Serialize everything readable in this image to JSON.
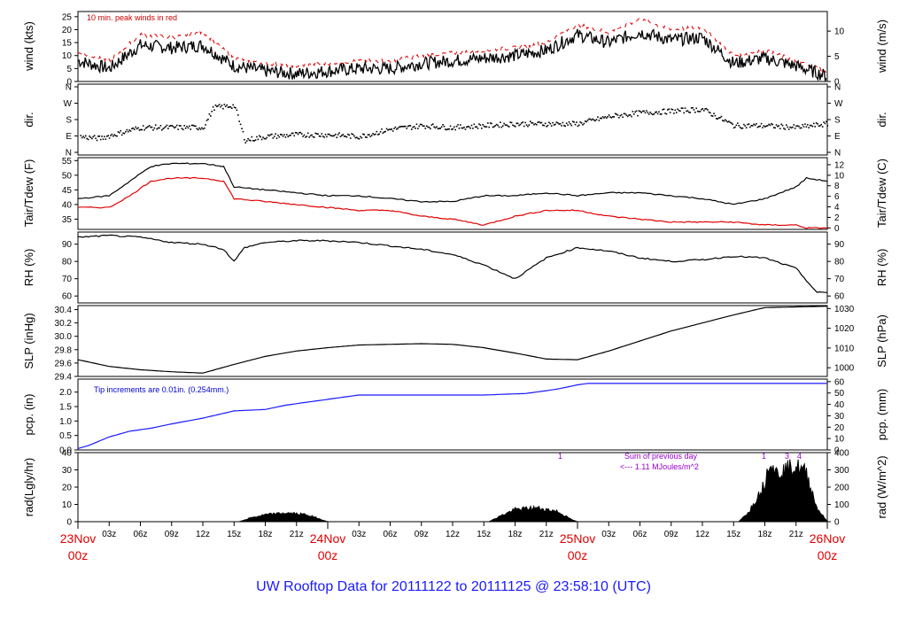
{
  "title": "UW Rooftop Data for 20111122  to  20111125 @ 23:58:10  (UTC)",
  "x_axis": {
    "hour_ticks": [
      "03z",
      "06z",
      "09z",
      "12z",
      "15z",
      "18z",
      "21z",
      "03z",
      "06z",
      "09z",
      "12z",
      "15z",
      "18z",
      "21z",
      "03z",
      "06z",
      "09z",
      "12z",
      "15z",
      "18z",
      "21z"
    ],
    "day_labels": [
      {
        "top": "23Nov",
        "bottom": "00z"
      },
      {
        "top": "24Nov",
        "bottom": "00z"
      },
      {
        "top": "25Nov",
        "bottom": "00z"
      },
      {
        "top": "26Nov",
        "bottom": "00z"
      }
    ]
  },
  "chart_data": [
    {
      "id": "wind",
      "type": "line",
      "ylabel": "wind (kts)",
      "ylabel_right": "wind (m/s)",
      "ylim": [
        0,
        27
      ],
      "yticks": [
        0,
        5,
        10,
        15,
        20,
        25
      ],
      "right_ticks": [
        0,
        5,
        10
      ],
      "annotation": "10 min. peak winds in red",
      "x_hours": [
        0,
        3,
        6,
        9,
        12,
        15,
        18,
        21,
        24,
        27,
        30,
        33,
        36,
        39,
        42,
        45,
        48,
        51,
        54,
        57,
        60,
        63,
        66,
        69,
        72
      ],
      "series": [
        {
          "values": [
            8,
            5,
            14,
            13,
            14,
            6,
            4,
            3,
            4,
            5,
            5,
            7,
            8,
            9,
            10,
            12,
            18,
            15,
            19,
            16,
            17,
            7,
            9,
            6,
            2
          ]
        },
        {
          "values": [
            11,
            8,
            18,
            17,
            19,
            9,
            7,
            6,
            7,
            8,
            8,
            10,
            11,
            12,
            13,
            15,
            22,
            19,
            24,
            20,
            21,
            10,
            12,
            8,
            4
          ]
        }
      ]
    },
    {
      "id": "dir",
      "type": "scatter",
      "ylabel": "dir.",
      "ylabel_right": "dir.",
      "ytick_labels": [
        "N",
        "E",
        "S",
        "W",
        "N"
      ],
      "right_tick_labels": [
        "N",
        "E",
        "S",
        "W",
        "N"
      ],
      "x_hours": [
        0,
        2,
        4,
        6,
        9,
        12,
        13,
        15,
        16,
        18,
        21,
        24,
        27,
        30,
        33,
        36,
        39,
        42,
        45,
        48,
        51,
        54,
        57,
        60,
        63,
        66,
        69,
        72
      ],
      "values": [
        90,
        80,
        110,
        140,
        140,
        140,
        250,
        260,
        70,
        90,
        100,
        100,
        90,
        130,
        150,
        140,
        150,
        160,
        160,
        160,
        200,
        220,
        230,
        240,
        150,
        150,
        140,
        160
      ]
    },
    {
      "id": "temp",
      "type": "line",
      "ylabel": "Tair/Tdew (F)",
      "ylabel_right": "Tair/Tdew (C)",
      "ylim": [
        31.5,
        56
      ],
      "yticks": [
        35,
        40,
        45,
        50,
        55
      ],
      "right_ticks": [
        0,
        2,
        4,
        6,
        8,
        10,
        12
      ],
      "x_hours": [
        0,
        3,
        5,
        7,
        9,
        12,
        14,
        15,
        18,
        21,
        24,
        27,
        30,
        33,
        36,
        39,
        42,
        45,
        48,
        51,
        54,
        57,
        60,
        63,
        66,
        69,
        70,
        72
      ],
      "series": [
        {
          "values": [
            42,
            43,
            48,
            53,
            54,
            54,
            53,
            46,
            45,
            44,
            43,
            43,
            42,
            41,
            41,
            43,
            43,
            44,
            43,
            44,
            44,
            43,
            42,
            40,
            42,
            46,
            49,
            48
          ]
        },
        {
          "values": [
            39,
            39,
            43,
            48,
            49,
            49,
            48,
            42,
            41,
            40,
            39,
            38,
            38,
            36,
            35,
            33,
            36,
            38,
            38,
            36,
            35,
            34,
            34,
            34,
            33,
            33,
            32,
            32
          ]
        }
      ]
    },
    {
      "id": "rh",
      "type": "line",
      "ylabel": "RH (%)",
      "ylabel_right": "RH (%)",
      "ylim": [
        56,
        97
      ],
      "yticks": [
        60,
        70,
        80,
        90
      ],
      "right_ticks": [
        60,
        70,
        80,
        90
      ],
      "x_hours": [
        0,
        3,
        6,
        9,
        12,
        14,
        15,
        16,
        18,
        21,
        24,
        27,
        30,
        33,
        36,
        39,
        42,
        45,
        48,
        51,
        54,
        57,
        60,
        63,
        66,
        69,
        71,
        72
      ],
      "values": [
        94,
        95,
        94,
        91,
        90,
        87,
        80,
        88,
        91,
        92,
        92,
        91,
        89,
        87,
        84,
        78,
        70,
        82,
        88,
        86,
        82,
        80,
        81,
        83,
        82,
        76,
        62,
        62
      ]
    },
    {
      "id": "slp",
      "type": "line",
      "ylabel": "SLP (inHg)",
      "ylabel_right": "SLP (hPa)",
      "ylim": [
        29.4,
        30.46
      ],
      "yticks": [
        29.4,
        29.6,
        29.8,
        30.0,
        30.2,
        30.4
      ],
      "right_ticks": [
        1000,
        1010,
        1020,
        1030
      ],
      "x_hours": [
        0,
        3,
        6,
        9,
        12,
        15,
        18,
        21,
        24,
        27,
        30,
        33,
        36,
        39,
        42,
        45,
        48,
        51,
        54,
        57,
        60,
        63,
        66,
        69,
        72
      ],
      "values": [
        29.65,
        29.55,
        29.5,
        29.47,
        29.45,
        29.58,
        29.7,
        29.78,
        29.83,
        29.87,
        29.88,
        29.89,
        29.88,
        29.83,
        29.75,
        29.66,
        29.65,
        29.78,
        29.93,
        30.08,
        30.2,
        30.32,
        30.43,
        30.44,
        30.45
      ]
    },
    {
      "id": "pcp",
      "type": "line",
      "ylabel": "pcp. (in)",
      "ylabel_right": "pcp. (mm)",
      "ylim": [
        0,
        2.45
      ],
      "yticks": [
        0.0,
        0.5,
        1.0,
        1.5,
        2.0
      ],
      "right_ticks": [
        0,
        10,
        20,
        30,
        40,
        50,
        60
      ],
      "annotation": "Tip increments are 0.01in. (0.254mm.)",
      "x_hours": [
        0,
        1,
        3,
        5,
        7,
        9,
        12,
        15,
        18,
        20,
        24,
        27,
        30,
        33,
        36,
        39,
        43,
        46,
        48,
        49,
        52,
        56,
        60,
        64,
        68,
        72
      ],
      "values": [
        0.05,
        0.15,
        0.45,
        0.65,
        0.75,
        0.9,
        1.1,
        1.35,
        1.4,
        1.55,
        1.75,
        1.9,
        1.9,
        1.9,
        1.9,
        1.9,
        1.95,
        2.1,
        2.25,
        2.3,
        2.3,
        2.3,
        2.3,
        2.3,
        2.3,
        2.3
      ]
    },
    {
      "id": "rad",
      "type": "area",
      "ylabel": "rad(Lgly/hr)",
      "ylabel_right": "rad (W/m^2)",
      "ylim": [
        0,
        40
      ],
      "yticks": [
        0,
        10,
        20,
        30,
        40
      ],
      "right_ticks": [
        0,
        100,
        200,
        300,
        400
      ],
      "annotation_lines": [
        "Sum of previous day",
        "<--- 1.11 MJoules/m^2"
      ],
      "markers": [
        "1",
        "1",
        "3",
        "4"
      ],
      "x_hours": [
        0,
        15.5,
        16.5,
        18,
        20,
        22,
        23.5,
        24,
        39.5,
        40.5,
        42,
        44,
        46,
        47.5,
        48,
        63.5,
        64.5,
        66,
        66.5,
        67,
        68,
        69,
        70,
        71,
        72
      ],
      "values": [
        0,
        0,
        2,
        4,
        5,
        4,
        1,
        0,
        0,
        3,
        7,
        8,
        6,
        1,
        0,
        0,
        6,
        22,
        38,
        28,
        30,
        32,
        28,
        8,
        0
      ]
    }
  ]
}
